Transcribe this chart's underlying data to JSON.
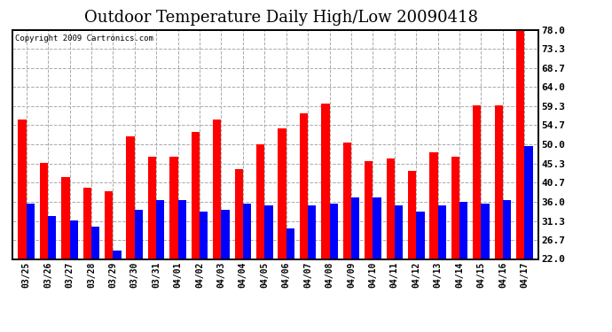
{
  "title": "Outdoor Temperature Daily High/Low 20090418",
  "copyright": "Copyright 2009 Cartronics.com",
  "dates": [
    "03/25",
    "03/26",
    "03/27",
    "03/28",
    "03/29",
    "03/30",
    "03/31",
    "04/01",
    "04/02",
    "04/03",
    "04/04",
    "04/05",
    "04/06",
    "04/07",
    "04/08",
    "04/09",
    "04/10",
    "04/11",
    "04/12",
    "04/13",
    "04/14",
    "04/15",
    "04/16",
    "04/17"
  ],
  "highs": [
    56.0,
    45.5,
    42.0,
    39.5,
    38.5,
    52.0,
    47.0,
    47.0,
    53.0,
    56.0,
    44.0,
    50.0,
    54.0,
    57.5,
    60.0,
    50.5,
    46.0,
    46.5,
    43.5,
    48.0,
    47.0,
    59.5,
    59.5,
    79.0
  ],
  "lows": [
    35.5,
    32.5,
    31.5,
    30.0,
    24.0,
    34.0,
    36.5,
    36.5,
    33.5,
    34.0,
    35.5,
    35.0,
    29.5,
    35.0,
    35.5,
    37.0,
    37.0,
    35.0,
    33.5,
    35.0,
    36.0,
    35.5,
    36.5,
    49.5
  ],
  "high_color": "#ff0000",
  "low_color": "#0000ff",
  "bg_color": "#ffffff",
  "grid_color": "#aaaaaa",
  "ytick_labels": [
    "22.0",
    "26.7",
    "31.3",
    "36.0",
    "40.7",
    "45.3",
    "50.0",
    "54.7",
    "59.3",
    "64.0",
    "68.7",
    "73.3",
    "78.0"
  ],
  "ytick_values": [
    22.0,
    26.7,
    31.3,
    36.0,
    40.7,
    45.3,
    50.0,
    54.7,
    59.3,
    64.0,
    68.7,
    73.3,
    78.0
  ],
  "ymin": 22.0,
  "ymax": 78.0,
  "title_fontsize": 13,
  "bar_width": 0.38
}
